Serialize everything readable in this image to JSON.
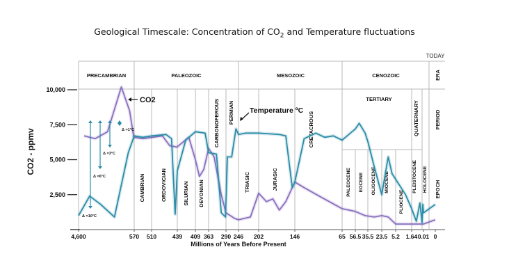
{
  "chart_data": {
    "type": "line",
    "title_parts": {
      "before": "Geological Timescale: Concentration of CO",
      "sub": "2",
      "after": " and Temperature fluctuations"
    },
    "xlabel": "Millions of Years Before Present",
    "ylabel": "CO2 - ppmv",
    "x_ticks": [
      "4,600",
      "570",
      "510",
      "439",
      "409",
      "363",
      "290",
      "246",
      "202",
      "146",
      "65",
      "56.5",
      "35.5",
      "23.5",
      "5.2",
      "1.64",
      "0.01",
      "0"
    ],
    "y_ticks": [
      "10,000",
      "7,500",
      "5,000",
      "2,500"
    ],
    "y_tick_values": [
      10000,
      7500,
      5000,
      2500
    ],
    "ylim": [
      0,
      11000
    ],
    "today_label": "TODAY",
    "row_labels": {
      "era": "ERA",
      "period": "PERIOD",
      "epoch": "EPOCH"
    },
    "eras": [
      "PRECAMBRIAN",
      "PALEOZOIC",
      "MESOZOIC",
      "CENOZOIC"
    ],
    "periods": [
      "CAMBRIAN",
      "ORDOVICIAN",
      "SILURIAN",
      "DEVONIAN",
      "CARBONOFEROUS",
      "PERMIAN",
      "TRIASIC",
      "JURASIC",
      "CRETACROUS",
      "TERTIARY",
      "QUATERNARY"
    ],
    "epochs": [
      "PALEOCENE",
      "EOCENE",
      "OLIGOCENE",
      "MIOCENE",
      "PLIOCENE",
      "PLEISTOCENE",
      "HOLOCENE"
    ],
    "annotations": {
      "co2": "CO2",
      "temperature": "Temperature ºC"
    },
    "delta_labels": [
      "Δ =1°C",
      "Δ =3°C",
      "Δ =6°C",
      "Δ =10°C"
    ],
    "series": [
      {
        "name": "CO2",
        "color": "#8a6fbf",
        "points_ma_ppmv": [
          [
            4200,
            6700
          ],
          [
            3400,
            6500
          ],
          [
            2500,
            7000
          ],
          [
            1500,
            10200
          ],
          [
            900,
            8500
          ],
          [
            600,
            6600
          ],
          [
            540,
            6500
          ],
          [
            480,
            6700
          ],
          [
            460,
            6000
          ],
          [
            440,
            5900
          ],
          [
            420,
            6600
          ],
          [
            409,
            5000
          ],
          [
            395,
            3800
          ],
          [
            380,
            4300
          ],
          [
            363,
            5800
          ],
          [
            340,
            5200
          ],
          [
            310,
            2500
          ],
          [
            290,
            1200
          ],
          [
            260,
            800
          ],
          [
            246,
            700
          ],
          [
            220,
            900
          ],
          [
            202,
            2600
          ],
          [
            190,
            2000
          ],
          [
            180,
            2200
          ],
          [
            170,
            1400
          ],
          [
            160,
            2000
          ],
          [
            146,
            3400
          ],
          [
            130,
            3000
          ],
          [
            100,
            2300
          ],
          [
            65,
            1500
          ],
          [
            56.5,
            1300
          ],
          [
            40,
            1000
          ],
          [
            30,
            900
          ],
          [
            23.5,
            1000
          ],
          [
            15,
            900
          ],
          [
            5.2,
            400
          ],
          [
            1.64,
            400
          ],
          [
            0.01,
            400
          ],
          [
            0,
            700
          ]
        ]
      },
      {
        "name": "Temperature",
        "color": "#2a8ca8",
        "points_ma_ppmv": [
          [
            4600,
            1000
          ],
          [
            3800,
            2400
          ],
          [
            3000,
            1800
          ],
          [
            2000,
            900
          ],
          [
            1000,
            5500
          ],
          [
            570,
            6700
          ],
          [
            540,
            6600
          ],
          [
            510,
            6700
          ],
          [
            470,
            6800
          ],
          [
            455,
            6500
          ],
          [
            445,
            1100
          ],
          [
            439,
            4200
          ],
          [
            425,
            6400
          ],
          [
            409,
            7000
          ],
          [
            375,
            6900
          ],
          [
            363,
            5500
          ],
          [
            330,
            5400
          ],
          [
            310,
            1200
          ],
          [
            292,
            900
          ],
          [
            285,
            5200
          ],
          [
            270,
            5200
          ],
          [
            255,
            7200
          ],
          [
            246,
            6800
          ],
          [
            230,
            6900
          ],
          [
            202,
            6900
          ],
          [
            170,
            6800
          ],
          [
            160,
            6700
          ],
          [
            150,
            3000
          ],
          [
            146,
            3400
          ],
          [
            130,
            6500
          ],
          [
            110,
            6900
          ],
          [
            95,
            6600
          ],
          [
            80,
            6700
          ],
          [
            65,
            6400
          ],
          [
            56.5,
            7200
          ],
          [
            50,
            7600
          ],
          [
            40,
            6900
          ],
          [
            35.5,
            6300
          ],
          [
            30,
            4500
          ],
          [
            23.5,
            2500
          ],
          [
            15,
            5200
          ],
          [
            10,
            4000
          ],
          [
            5.2,
            3600
          ],
          [
            3,
            2500
          ],
          [
            1.64,
            1500
          ],
          [
            1,
            600
          ],
          [
            0.5,
            1900
          ],
          [
            0.2,
            500
          ],
          [
            0.1,
            1800
          ],
          [
            0.01,
            1200
          ],
          [
            0,
            1800
          ]
        ]
      }
    ]
  }
}
